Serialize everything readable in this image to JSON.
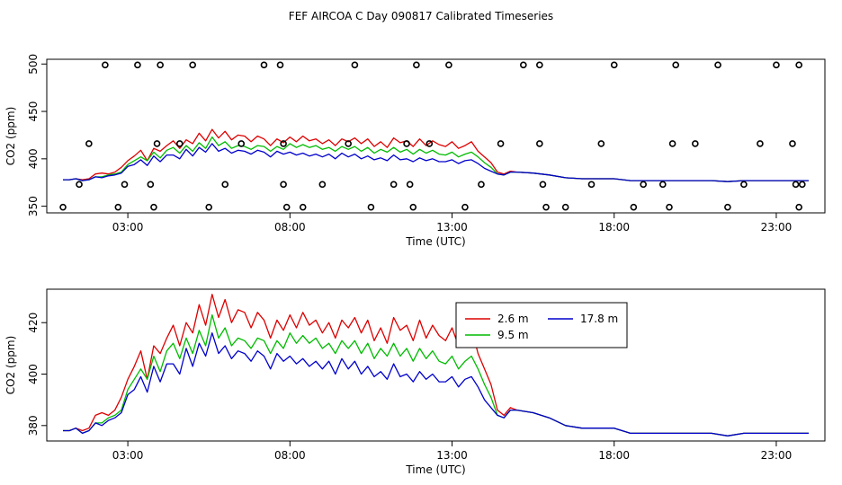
{
  "title": "FEF AIRCOA C  Day 090817  Calibrated Timeseries",
  "colors": {
    "h26": "#dd0000",
    "h95": "#00bb00",
    "h178": "#0000cc",
    "axis": "#000000"
  },
  "chart_data": [
    {
      "type": "line+scatter",
      "name": "top-panel",
      "xlabel": "Time (UTC)",
      "ylabel": "CO2 (ppm)",
      "xlim": [
        0.5,
        24.5
      ],
      "ylim": [
        343,
        505
      ],
      "xticks": [
        3,
        8,
        13,
        18,
        23
      ],
      "xticklabels": [
        "03:00",
        "08:00",
        "13:00",
        "18:00",
        "23:00"
      ],
      "yticks": [
        350,
        400,
        450,
        500
      ],
      "yticklabels": [
        "350",
        "400",
        "450",
        "500"
      ],
      "series_keys": [
        "h26",
        "h95",
        "h178"
      ],
      "scatter": {
        "marker": "open-circle",
        "x": [
          1.0,
          1.5,
          1.8,
          2.3,
          2.7,
          2.9,
          3.3,
          3.7,
          3.8,
          3.9,
          4.0,
          4.6,
          5.0,
          5.5,
          6.0,
          6.5,
          7.2,
          7.7,
          7.8,
          7.8,
          7.9,
          8.4,
          9.0,
          9.8,
          10.0,
          10.5,
          11.2,
          11.6,
          11.7,
          11.8,
          11.9,
          12.3,
          12.9,
          13.4,
          13.9,
          14.5,
          15.2,
          15.7,
          15.7,
          15.8,
          15.9,
          16.5,
          17.3,
          17.6,
          18.0,
          18.6,
          18.9,
          19.5,
          19.7,
          19.8,
          19.9,
          20.5,
          21.2,
          21.5,
          22.0,
          22.5,
          23.0,
          23.5,
          23.6,
          23.7,
          23.7,
          23.8
        ],
        "y": [
          349,
          373,
          416,
          499,
          349,
          373,
          499,
          373,
          349,
          416,
          499,
          416,
          499,
          349,
          373,
          416,
          499,
          499,
          416,
          373,
          349,
          349,
          373,
          416,
          499,
          349,
          373,
          416,
          373,
          349,
          499,
          416,
          499,
          349,
          373,
          416,
          499,
          416,
          499,
          373,
          349,
          349,
          373,
          416,
          499,
          349,
          373,
          373,
          349,
          416,
          499,
          416,
          499,
          349,
          373,
          416,
          499,
          416,
          373,
          349,
          499,
          373
        ]
      }
    },
    {
      "type": "line",
      "name": "bottom-panel",
      "xlabel": "Time (UTC)",
      "ylabel": "CO2 (ppm)",
      "xlim": [
        0.5,
        24.5
      ],
      "ylim": [
        374,
        433
      ],
      "xticks": [
        3,
        8,
        13,
        18,
        23
      ],
      "xticklabels": [
        "03:00",
        "08:00",
        "13:00",
        "18:00",
        "23:00"
      ],
      "yticks": [
        380,
        400,
        420
      ],
      "yticklabels": [
        "380",
        "400",
        "420"
      ],
      "series_keys": [
        "h26",
        "h95",
        "h178"
      ],
      "legend": {
        "position": "upper-right",
        "entries": [
          {
            "key": "h26",
            "label": "2.6 m"
          },
          {
            "key": "h178",
            "label": "17.8 m"
          },
          {
            "key": "h95",
            "label": "9.5 m"
          }
        ]
      }
    }
  ],
  "series": [
    {
      "key": "h26",
      "name": "2.6 m",
      "x": [
        1.0,
        1.2,
        1.4,
        1.6,
        1.8,
        2.0,
        2.2,
        2.4,
        2.6,
        2.8,
        3.0,
        3.2,
        3.4,
        3.6,
        3.8,
        4.0,
        4.2,
        4.4,
        4.6,
        4.8,
        5.0,
        5.2,
        5.4,
        5.6,
        5.8,
        6.0,
        6.2,
        6.4,
        6.6,
        6.8,
        7.0,
        7.2,
        7.4,
        7.6,
        7.8,
        8.0,
        8.2,
        8.4,
        8.6,
        8.8,
        9.0,
        9.2,
        9.4,
        9.6,
        9.8,
        10.0,
        10.2,
        10.4,
        10.6,
        10.8,
        11.0,
        11.2,
        11.4,
        11.6,
        11.8,
        12.0,
        12.2,
        12.4,
        12.6,
        12.8,
        13.0,
        13.2,
        13.4,
        13.6,
        13.8,
        14.0,
        14.2,
        14.4,
        14.6,
        14.8,
        15.0,
        15.5,
        16.0,
        16.5,
        17.0,
        17.5,
        18.0,
        18.5,
        19.0,
        19.5,
        20.0,
        20.5,
        21.0,
        21.5,
        22.0,
        22.5,
        23.0,
        23.5,
        24.0
      ],
      "y": [
        378,
        378,
        379,
        378,
        379,
        384,
        385,
        384,
        386,
        391,
        398,
        403,
        409,
        398,
        411,
        408,
        414,
        419,
        411,
        420,
        416,
        427,
        419,
        431,
        422,
        429,
        420,
        425,
        424,
        418,
        424,
        421,
        414,
        421,
        417,
        423,
        418,
        424,
        419,
        421,
        416,
        420,
        414,
        421,
        418,
        422,
        416,
        421,
        413,
        418,
        412,
        422,
        417,
        419,
        413,
        421,
        414,
        419,
        415,
        413,
        418,
        411,
        414,
        418,
        408,
        402,
        396,
        386,
        384,
        387,
        386,
        385,
        383,
        380,
        379,
        379,
        379,
        377,
        377,
        377,
        377,
        377,
        377,
        376,
        377,
        377,
        377,
        377,
        377
      ]
    },
    {
      "key": "h95",
      "name": "9.5 m",
      "x": [
        1.0,
        1.2,
        1.4,
        1.6,
        1.8,
        2.0,
        2.2,
        2.4,
        2.6,
        2.8,
        3.0,
        3.2,
        3.4,
        3.6,
        3.8,
        4.0,
        4.2,
        4.4,
        4.6,
        4.8,
        5.0,
        5.2,
        5.4,
        5.6,
        5.8,
        6.0,
        6.2,
        6.4,
        6.6,
        6.8,
        7.0,
        7.2,
        7.4,
        7.6,
        7.8,
        8.0,
        8.2,
        8.4,
        8.6,
        8.8,
        9.0,
        9.2,
        9.4,
        9.6,
        9.8,
        10.0,
        10.2,
        10.4,
        10.6,
        10.8,
        11.0,
        11.2,
        11.4,
        11.6,
        11.8,
        12.0,
        12.2,
        12.4,
        12.6,
        12.8,
        13.0,
        13.2,
        13.4,
        13.6,
        13.8,
        14.0,
        14.2,
        14.4,
        14.6,
        14.8,
        15.0,
        15.5,
        16.0,
        16.5,
        17.0,
        17.5,
        18.0,
        18.5,
        19.0,
        19.5,
        20.0,
        20.5,
        21.0,
        21.5,
        22.0,
        22.5,
        23.0,
        23.5,
        24.0
      ],
      "y": [
        378,
        378,
        379,
        377,
        378,
        381,
        381,
        383,
        384,
        386,
        394,
        398,
        402,
        398,
        407,
        401,
        409,
        412,
        406,
        414,
        408,
        417,
        411,
        423,
        414,
        418,
        411,
        414,
        413,
        410,
        414,
        413,
        408,
        413,
        410,
        416,
        412,
        415,
        412,
        414,
        410,
        412,
        408,
        413,
        410,
        413,
        408,
        412,
        406,
        410,
        407,
        412,
        407,
        410,
        405,
        410,
        406,
        409,
        405,
        404,
        407,
        402,
        405,
        407,
        402,
        396,
        391,
        384,
        383,
        386,
        386,
        385,
        383,
        380,
        379,
        379,
        379,
        377,
        377,
        377,
        377,
        377,
        377,
        376,
        377,
        377,
        377,
        377,
        377
      ]
    },
    {
      "key": "h178",
      "name": "17.8 m",
      "x": [
        1.0,
        1.2,
        1.4,
        1.6,
        1.8,
        2.0,
        2.2,
        2.4,
        2.6,
        2.8,
        3.0,
        3.2,
        3.4,
        3.6,
        3.8,
        4.0,
        4.2,
        4.4,
        4.6,
        4.8,
        5.0,
        5.2,
        5.4,
        5.6,
        5.8,
        6.0,
        6.2,
        6.4,
        6.6,
        6.8,
        7.0,
        7.2,
        7.4,
        7.6,
        7.8,
        8.0,
        8.2,
        8.4,
        8.6,
        8.8,
        9.0,
        9.2,
        9.4,
        9.6,
        9.8,
        10.0,
        10.2,
        10.4,
        10.6,
        10.8,
        11.0,
        11.2,
        11.4,
        11.6,
        11.8,
        12.0,
        12.2,
        12.4,
        12.6,
        12.8,
        13.0,
        13.2,
        13.4,
        13.6,
        13.8,
        14.0,
        14.2,
        14.4,
        14.6,
        14.8,
        15.0,
        15.5,
        16.0,
        16.5,
        17.0,
        17.5,
        18.0,
        18.5,
        19.0,
        19.5,
        20.0,
        20.5,
        21.0,
        21.5,
        22.0,
        22.5,
        23.0,
        23.5,
        24.0
      ],
      "y": [
        378,
        378,
        379,
        377,
        378,
        381,
        380,
        382,
        383,
        385,
        392,
        394,
        399,
        393,
        403,
        397,
        404,
        404,
        400,
        410,
        403,
        412,
        407,
        416,
        408,
        411,
        406,
        409,
        408,
        405,
        409,
        407,
        402,
        408,
        405,
        407,
        404,
        406,
        403,
        405,
        402,
        405,
        400,
        406,
        402,
        405,
        400,
        403,
        399,
        401,
        398,
        404,
        399,
        400,
        397,
        401,
        398,
        400,
        397,
        397,
        399,
        395,
        398,
        399,
        395,
        390,
        387,
        384,
        383,
        386,
        386,
        385,
        383,
        380,
        379,
        379,
        379,
        377,
        377,
        377,
        377,
        377,
        377,
        376,
        377,
        377,
        377,
        377,
        377
      ]
    }
  ]
}
